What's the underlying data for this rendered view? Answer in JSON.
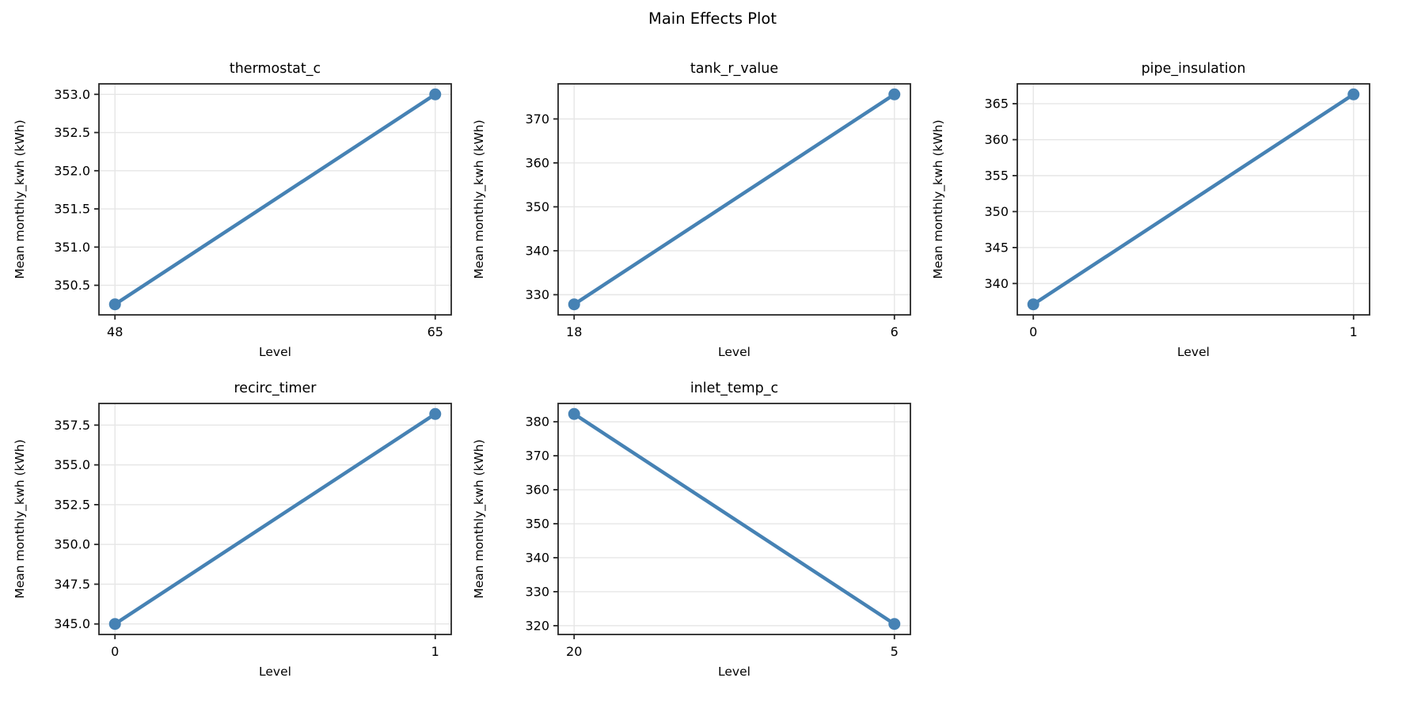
{
  "figure": {
    "title": "Main Effects Plot",
    "background": "#ffffff",
    "text_color": "#000000",
    "line_color": "#4682B4",
    "spine_color": "#262626",
    "grid_color": "#e6e6e6"
  },
  "chart_data": [
    {
      "type": "line",
      "title": "thermostat_c",
      "xlabel": "Level",
      "ylabel": "Mean monthly_kwh (kWh)",
      "categories": [
        "48",
        "65"
      ],
      "values": [
        350.25,
        353.0
      ],
      "yticks": [
        350.5,
        351.0,
        351.5,
        352.0,
        352.5,
        353.0
      ],
      "ytick_labels": [
        "350.5",
        "351.0",
        "351.5",
        "352.0",
        "352.5",
        "353.0"
      ],
      "grid": true,
      "legend": "none",
      "row": 0,
      "col": 0
    },
    {
      "type": "line",
      "title": "tank_r_value",
      "xlabel": "Level",
      "ylabel": "Mean monthly_kwh (kWh)",
      "categories": [
        "18",
        "6"
      ],
      "values": [
        327.8,
        375.6
      ],
      "yticks": [
        330,
        340,
        350,
        360,
        370
      ],
      "ytick_labels": [
        "330",
        "340",
        "350",
        "360",
        "370"
      ],
      "grid": true,
      "legend": "none",
      "row": 0,
      "col": 1
    },
    {
      "type": "line",
      "title": "pipe_insulation",
      "xlabel": "Level",
      "ylabel": "Mean monthly_kwh (kWh)",
      "categories": [
        "0",
        "1"
      ],
      "values": [
        337.1,
        366.3
      ],
      "yticks": [
        340,
        345,
        350,
        355,
        360,
        365
      ],
      "ytick_labels": [
        "340",
        "345",
        "350",
        "355",
        "360",
        "365"
      ],
      "grid": true,
      "legend": "none",
      "row": 1,
      "col": 0
    },
    {
      "type": "line",
      "title": "recirc_timer",
      "xlabel": "Level",
      "ylabel": "Mean monthly_kwh (kWh)",
      "categories": [
        "0",
        "1"
      ],
      "values": [
        345.0,
        358.2
      ],
      "yticks": [
        345.0,
        347.5,
        350.0,
        352.5,
        355.0,
        357.5
      ],
      "ytick_labels": [
        "345.0",
        "347.5",
        "350.0",
        "352.5",
        "355.0",
        "357.5"
      ],
      "grid": true,
      "legend": "none",
      "row": 1,
      "col": 0
    },
    {
      "type": "line",
      "title": "inlet_temp_c",
      "xlabel": "Level",
      "ylabel": "Mean monthly_kwh (kWh)",
      "categories": [
        "20",
        "5"
      ],
      "values": [
        382.3,
        320.5
      ],
      "yticks": [
        320,
        330,
        340,
        350,
        360,
        370,
        380
      ],
      "ytick_labels": [
        "320",
        "330",
        "340",
        "350",
        "360",
        "370",
        "380"
      ],
      "grid": true,
      "legend": "none",
      "row": 1,
      "col": 1
    }
  ]
}
